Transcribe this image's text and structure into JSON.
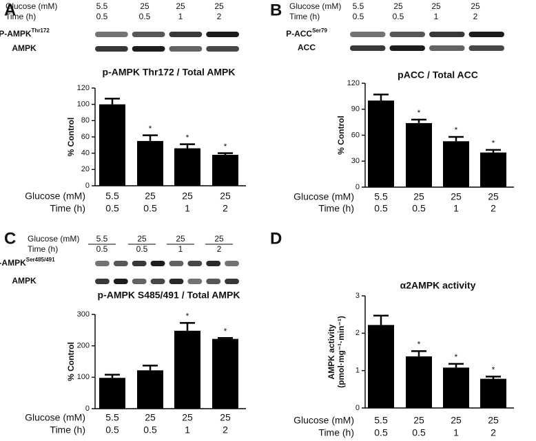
{
  "chart_data": [
    {
      "type": "bar",
      "panel": "A",
      "title": "p-AMPK Thr172 / Total AMPK",
      "ylabel": "% Control",
      "row_labels": [
        "Glucose (mM)",
        "Time (h)"
      ],
      "categories": [
        "5.5",
        "25",
        "25",
        "25"
      ],
      "categories2": [
        "0.5",
        "0.5",
        "1",
        "2"
      ],
      "blots": [
        {
          "label": "P-AMPK",
          "sup": "Thr172"
        },
        {
          "label": "AMPK"
        }
      ],
      "values": [
        100,
        55,
        46,
        38
      ],
      "errors": [
        7,
        7,
        5,
        2
      ],
      "significance": [
        null,
        "*",
        "*",
        "*"
      ],
      "color": "#000000",
      "ylim": [
        0,
        120
      ],
      "yticks": [
        0,
        20,
        40,
        60,
        80,
        100,
        120
      ]
    },
    {
      "type": "bar",
      "panel": "B",
      "title": "pACC / Total ACC",
      "ylabel": "% Control",
      "row_labels": [
        "Glucose (mM)",
        "Time (h)"
      ],
      "categories": [
        "5.5",
        "25",
        "25",
        "25"
      ],
      "categories2": [
        "0.5",
        "0.5",
        "1",
        "2"
      ],
      "blots": [
        {
          "label": "P-ACC",
          "sup": "Ser79"
        },
        {
          "label": "ACC"
        }
      ],
      "values": [
        100,
        74,
        53,
        40
      ],
      "errors": [
        7,
        4,
        5,
        3
      ],
      "significance": [
        null,
        "*",
        "*",
        "*"
      ],
      "color": "#000000",
      "ylim": [
        0,
        120
      ],
      "yticks": [
        0,
        30,
        60,
        90,
        120
      ]
    },
    {
      "type": "bar",
      "panel": "C",
      "title": "p-AMPK S485/491 / Total AMPK",
      "ylabel": "% Control",
      "row_labels": [
        "Glucose (mM)",
        "Time (h)"
      ],
      "categories": [
        "5.5",
        "25",
        "25",
        "25"
      ],
      "categories2": [
        "0.5",
        "0.5",
        "1",
        "2"
      ],
      "blots": [
        {
          "label": "P-AMPK",
          "sup": "Ser485/491"
        },
        {
          "label": "AMPK"
        }
      ],
      "values": [
        98,
        122,
        248,
        222
      ],
      "errors": [
        10,
        15,
        25,
        3
      ],
      "significance": [
        null,
        null,
        "*",
        "*"
      ],
      "color": "#000000",
      "ylim": [
        0,
        300
      ],
      "yticks": [
        0,
        100,
        200,
        300
      ]
    },
    {
      "type": "bar",
      "panel": "D",
      "title": "α2AMPK activity",
      "ylabel": "AMPK activity",
      "ylabel2": "(pmol·mg⁻¹·min⁻¹)",
      "row_labels": [
        "Glucose (mM)",
        "Time (h)"
      ],
      "categories": [
        "5.5",
        "25",
        "25",
        "25"
      ],
      "categories2": [
        "0.5",
        "0.5",
        "1",
        "2"
      ],
      "values": [
        2.22,
        1.38,
        1.08,
        0.78
      ],
      "errors": [
        0.25,
        0.14,
        0.1,
        0.06
      ],
      "significance": [
        null,
        "*",
        "*",
        "*"
      ],
      "color": "#000000",
      "ylim": [
        0,
        3
      ],
      "yticks": [
        0,
        1,
        2,
        3
      ]
    }
  ]
}
